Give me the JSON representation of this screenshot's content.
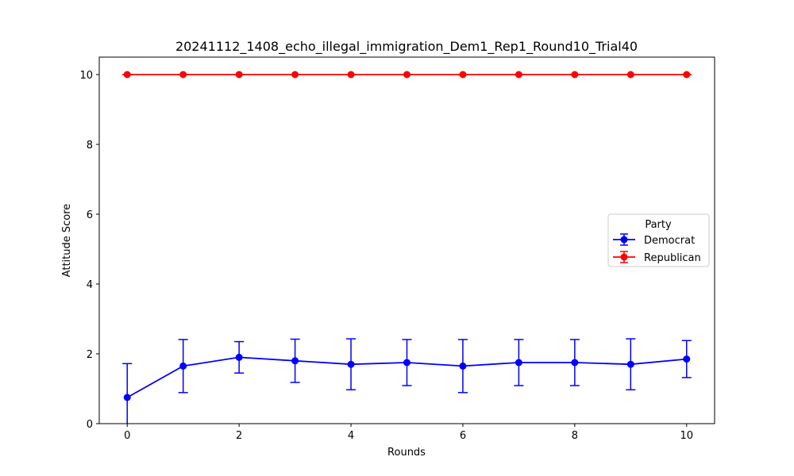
{
  "chart_data": {
    "type": "line",
    "title": "20241112_1408_echo_illegal_immigration_Dem1_Rep1_Round10_Trial40",
    "xlabel": "Rounds",
    "ylabel": "Attitude Score",
    "xlim": [
      -0.5,
      10.5
    ],
    "ylim": [
      0,
      10.5
    ],
    "xticks": [
      0,
      2,
      4,
      6,
      8,
      10
    ],
    "yticks": [
      0,
      2,
      4,
      6,
      8,
      10
    ],
    "x": [
      0,
      1,
      2,
      3,
      4,
      5,
      6,
      7,
      8,
      9,
      10
    ],
    "grid": false,
    "legend": {
      "title": "Party",
      "placement": "center-right"
    },
    "series": [
      {
        "name": "Democrat",
        "color": "#0000ff",
        "values": [
          0.75,
          1.65,
          1.9,
          1.8,
          1.7,
          1.75,
          1.65,
          1.75,
          1.75,
          1.7,
          1.85
        ],
        "error": [
          0.97,
          0.76,
          0.45,
          0.62,
          0.73,
          0.66,
          0.76,
          0.66,
          0.66,
          0.73,
          0.53
        ]
      },
      {
        "name": "Republican",
        "color": "#ff0000",
        "values": [
          10,
          10,
          10,
          10,
          10,
          10,
          10,
          10,
          10,
          10,
          10
        ],
        "error": [
          0,
          0,
          0,
          0,
          0,
          0,
          0,
          0,
          0,
          0,
          0
        ]
      }
    ]
  }
}
